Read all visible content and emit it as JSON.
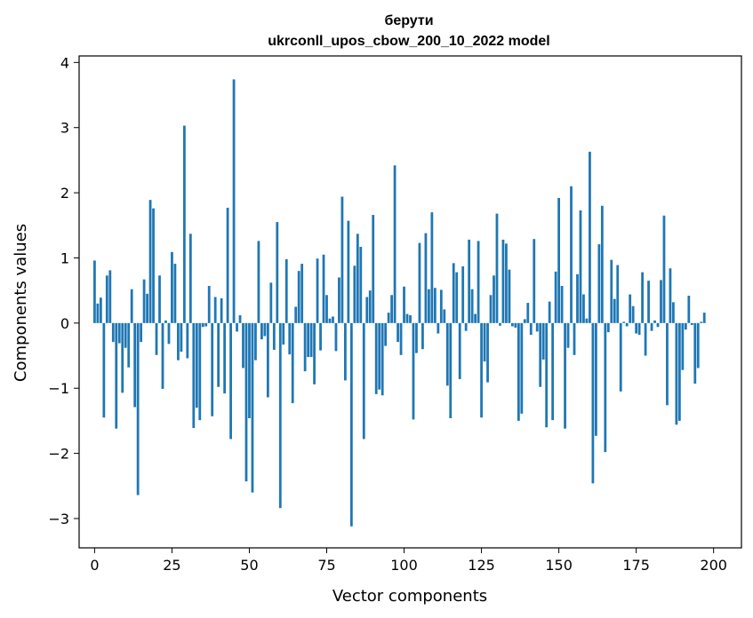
{
  "chart_data": {
    "type": "bar",
    "title": "берути",
    "subtitle": "ukrconll_upos_cbow_200_10_2022 model",
    "xlabel": "Vector components",
    "ylabel": "Components values",
    "xlim": [
      -5,
      209
    ],
    "ylim": [
      -3.45,
      4.1
    ],
    "xticks": [
      0,
      25,
      50,
      75,
      100,
      125,
      150,
      175,
      200
    ],
    "yticks": [
      -3,
      -2,
      -1,
      0,
      1,
      2,
      3,
      4
    ],
    "ytick_labels": [
      "−3",
      "−2",
      "−1",
      "0",
      "1",
      "2",
      "3",
      "4"
    ],
    "grid": false,
    "bar_color": "#1f77b4",
    "values": [
      0.96,
      0.3,
      0.39,
      -1.45,
      0.73,
      0.81,
      -0.29,
      -1.62,
      -0.31,
      -1.07,
      -0.38,
      -0.68,
      0.52,
      -1.29,
      -2.64,
      -0.29,
      0.67,
      0.45,
      1.89,
      1.76,
      -0.49,
      0.73,
      -1.01,
      0.04,
      -0.32,
      1.09,
      0.91,
      -0.57,
      -0.44,
      3.03,
      -0.54,
      1.37,
      -1.61,
      -1.3,
      -1.49,
      -0.06,
      -0.05,
      0.57,
      -1.43,
      0.4,
      -0.98,
      0.38,
      -1.08,
      1.77,
      -1.78,
      3.74,
      -0.13,
      0.12,
      -0.69,
      -2.43,
      -1.46,
      -2.6,
      -0.57,
      1.26,
      -0.25,
      -0.2,
      -1.14,
      0.62,
      -0.41,
      1.55,
      -2.84,
      -0.33,
      0.98,
      -0.48,
      -1.23,
      0.25,
      0.8,
      0.91,
      -0.74,
      -0.52,
      -0.52,
      -0.94,
      0.99,
      -0.42,
      1.05,
      0.43,
      0.07,
      0.1,
      -0.43,
      0.7,
      1.94,
      -0.88,
      1.57,
      -3.12,
      0.88,
      1.37,
      1.17,
      -1.78,
      0.4,
      0.5,
      1.66,
      -1.09,
      -1.02,
      -1.11,
      -0.35,
      0.16,
      0.43,
      2.42,
      -0.29,
      -0.49,
      0.56,
      0.14,
      0.12,
      -1.48,
      -0.46,
      1.23,
      -0.4,
      1.38,
      0.52,
      1.7,
      0.54,
      -0.16,
      0.51,
      0.21,
      -0.96,
      -1.46,
      0.92,
      0.78,
      -0.86,
      0.87,
      -0.12,
      1.28,
      0.52,
      0.14,
      1.26,
      -1.45,
      -0.59,
      -0.91,
      0.43,
      0.73,
      1.68,
      -0.04,
      1.28,
      1.22,
      0.82,
      -0.05,
      -0.07,
      -1.5,
      -1.39,
      0.06,
      0.31,
      -0.18,
      1.29,
      -0.13,
      -0.98,
      -0.56,
      -1.6,
      0.33,
      -1.49,
      0.79,
      1.92,
      0.57,
      -1.62,
      -0.38,
      2.1,
      -0.49,
      0.75,
      1.73,
      0.44,
      0.07,
      2.63,
      -2.46,
      -1.73,
      1.21,
      1.8,
      -1.98,
      -0.14,
      0.97,
      0.37,
      0.89,
      -1.05,
      0.02,
      -0.05,
      0.44,
      0.26,
      -0.16,
      -0.18,
      0.78,
      -0.5,
      0.65,
      -0.12,
      0.04,
      -0.06,
      0.66,
      1.65,
      -1.26,
      0.84,
      0.32,
      -1.56,
      -1.5,
      -0.72,
      -0.1,
      0.42,
      -0.03,
      -0.93,
      -0.69,
      0.02,
      0.16
    ]
  }
}
